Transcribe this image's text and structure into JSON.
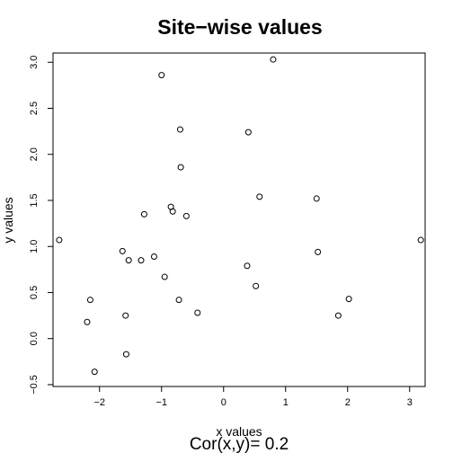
{
  "chart_data": {
    "type": "scatter",
    "title": "Site−wise values",
    "xlabel": "x values",
    "ylabel": "y values",
    "annotation": "Cor(x,y)= 0.2",
    "xlim": [
      -2.75,
      3.25
    ],
    "ylim": [
      -0.52,
      3.1
    ],
    "x_ticks": [
      -2,
      -1,
      0,
      1,
      2,
      3
    ],
    "x_tick_labels": [
      "−2",
      "−1",
      "0",
      "1",
      "2",
      "3"
    ],
    "y_ticks": [
      -0.5,
      0.0,
      0.5,
      1.0,
      1.5,
      2.0,
      2.5,
      3.0
    ],
    "y_tick_labels": [
      "−0.5",
      "0.0",
      "0.5",
      "1.0",
      "1.5",
      "2.0",
      "2.5",
      "3.0"
    ],
    "grid": false,
    "points": [
      {
        "x": -2.65,
        "y": 1.07
      },
      {
        "x": -2.2,
        "y": 0.18
      },
      {
        "x": -2.15,
        "y": 0.42
      },
      {
        "x": -2.08,
        "y": -0.36
      },
      {
        "x": -1.63,
        "y": 0.95
      },
      {
        "x": -1.58,
        "y": 0.25
      },
      {
        "x": -1.57,
        "y": -0.17
      },
      {
        "x": -1.53,
        "y": 0.85
      },
      {
        "x": -1.33,
        "y": 0.85
      },
      {
        "x": -1.28,
        "y": 1.35
      },
      {
        "x": -1.12,
        "y": 0.89
      },
      {
        "x": -1.0,
        "y": 2.86
      },
      {
        "x": -0.95,
        "y": 0.67
      },
      {
        "x": -0.85,
        "y": 1.43
      },
      {
        "x": -0.82,
        "y": 1.38
      },
      {
        "x": -0.72,
        "y": 0.42
      },
      {
        "x": -0.7,
        "y": 2.27
      },
      {
        "x": -0.69,
        "y": 1.86
      },
      {
        "x": -0.6,
        "y": 1.33
      },
      {
        "x": -0.42,
        "y": 0.28
      },
      {
        "x": 0.38,
        "y": 0.79
      },
      {
        "x": 0.4,
        "y": 2.24
      },
      {
        "x": 0.52,
        "y": 0.57
      },
      {
        "x": 0.58,
        "y": 1.54
      },
      {
        "x": 0.8,
        "y": 3.03
      },
      {
        "x": 1.5,
        "y": 1.52
      },
      {
        "x": 1.52,
        "y": 0.94
      },
      {
        "x": 1.85,
        "y": 0.25
      },
      {
        "x": 2.02,
        "y": 0.43
      },
      {
        "x": 3.18,
        "y": 1.07
      }
    ]
  }
}
